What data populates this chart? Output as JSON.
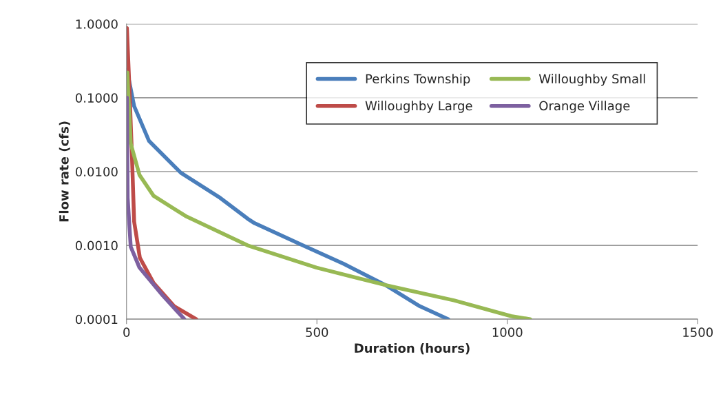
{
  "chart_data": {
    "type": "line",
    "xlabel": "Duration (hours)",
    "ylabel": "Flow rate (cfs)",
    "log": "y",
    "xlim": [
      0,
      1500
    ],
    "xticks": [
      0,
      500,
      1000,
      1500
    ],
    "ylim": [
      0.0001,
      1
    ],
    "yticks": [
      {
        "value": 0.0001,
        "label": "0.0001"
      },
      {
        "value": 0.001,
        "label": "0.0010"
      },
      {
        "value": 0.01,
        "label": "0.0100"
      },
      {
        "value": 0.1,
        "label": "0.1000"
      },
      {
        "value": 1,
        "label": "1.0000"
      }
    ],
    "grid": "y",
    "legend": "top right",
    "marker": "none",
    "line_style": "solid",
    "series": [
      {
        "name": "Perkins Township",
        "color": "#4a7ebb",
        "x": [
          1,
          20,
          59,
          143,
          246,
          318,
          336,
          463,
          571,
          680,
          770,
          845
        ],
        "values": [
          0.24,
          0.077,
          0.026,
          0.0096,
          0.0044,
          0.0023,
          0.002,
          0.001,
          0.00056,
          0.00029,
          0.00015,
          0.0001
        ]
      },
      {
        "name": "Willoughby Large",
        "color": "#be4b48",
        "x": [
          1,
          7,
          14,
          20,
          35,
          71,
          125,
          183
        ],
        "values": [
          0.88,
          0.16,
          0.018,
          0.0021,
          0.00068,
          0.00031,
          0.00015,
          0.0001
        ]
      },
      {
        "name": "Willoughby Small",
        "color": "#98b954",
        "x": [
          2,
          11,
          34,
          71,
          155,
          318,
          499,
          680,
          860,
          1010,
          1060
        ],
        "values": [
          0.22,
          0.024,
          0.009,
          0.0047,
          0.0025,
          0.001,
          0.0005,
          0.00029,
          0.00018,
          0.00011,
          0.0001
        ]
      },
      {
        "name": "Orange Village",
        "color": "#7d60a0",
        "x": [
          1,
          3,
          11,
          34,
          95,
          152
        ],
        "values": [
          0.1,
          0.0044,
          0.00096,
          0.0005,
          0.00021,
          0.0001
        ]
      }
    ]
  }
}
